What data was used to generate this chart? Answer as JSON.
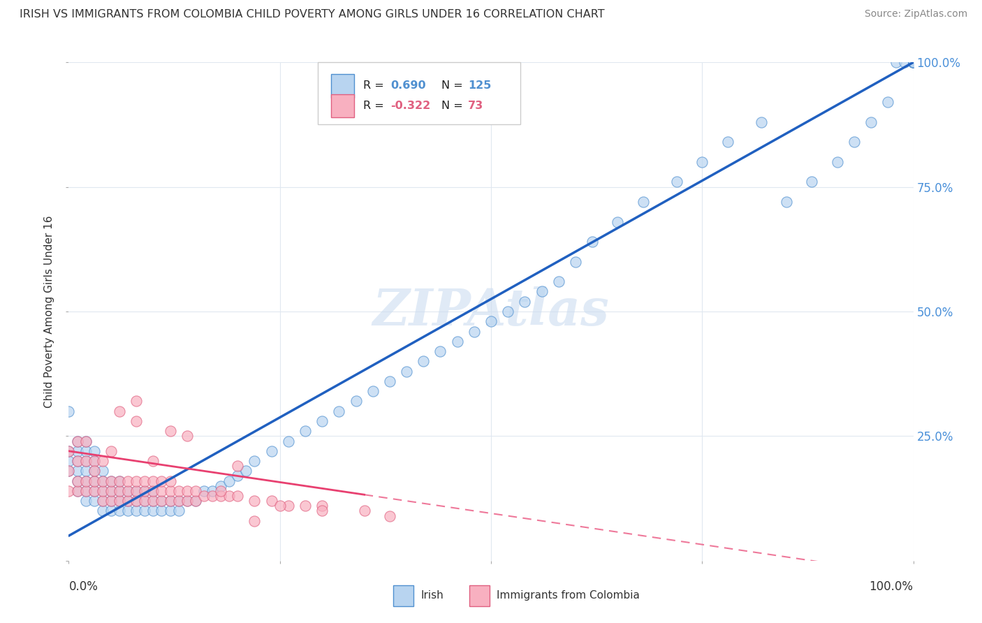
{
  "title": "IRISH VS IMMIGRANTS FROM COLOMBIA CHILD POVERTY AMONG GIRLS UNDER 16 CORRELATION CHART",
  "source": "Source: ZipAtlas.com",
  "ylabel": "Child Poverty Among Girls Under 16",
  "legend_irish_R": "0.690",
  "legend_irish_N": "125",
  "legend_colombia_R": "-0.322",
  "legend_colombia_N": "73",
  "irish_fill_color": "#b8d4f0",
  "ireland_edge_color": "#5090d0",
  "colombia_fill_color": "#f8b0c0",
  "colombia_edge_color": "#e06080",
  "irish_line_color": "#2060c0",
  "colombia_line_color": "#e84070",
  "watermark_color": "#ccddf0",
  "ytick_color": "#4a90d9",
  "grid_color": "#e0e8f0",
  "irish_scatter_x": [
    0.0,
    0.0,
    0.0,
    0.0,
    0.01,
    0.01,
    0.01,
    0.01,
    0.01,
    0.01,
    0.02,
    0.02,
    0.02,
    0.02,
    0.02,
    0.02,
    0.02,
    0.03,
    0.03,
    0.03,
    0.03,
    0.03,
    0.03,
    0.04,
    0.04,
    0.04,
    0.04,
    0.04,
    0.05,
    0.05,
    0.05,
    0.05,
    0.06,
    0.06,
    0.06,
    0.06,
    0.07,
    0.07,
    0.07,
    0.08,
    0.08,
    0.08,
    0.09,
    0.09,
    0.09,
    0.1,
    0.1,
    0.1,
    0.11,
    0.11,
    0.12,
    0.12,
    0.13,
    0.13,
    0.14,
    0.15,
    0.16,
    0.17,
    0.18,
    0.19,
    0.2,
    0.21,
    0.22,
    0.24,
    0.26,
    0.28,
    0.3,
    0.32,
    0.34,
    0.36,
    0.38,
    0.4,
    0.42,
    0.44,
    0.46,
    0.48,
    0.5,
    0.52,
    0.54,
    0.56,
    0.58,
    0.6,
    0.62,
    0.65,
    0.68,
    0.72,
    0.75,
    0.78,
    0.82,
    0.85,
    0.88,
    0.91,
    0.93,
    0.95,
    0.97,
    0.98,
    0.99,
    1.0,
    1.0,
    1.0,
    1.0,
    1.0,
    1.0,
    1.0,
    1.0,
    1.0,
    1.0,
    1.0,
    1.0,
    1.0,
    1.0,
    1.0,
    1.0,
    1.0,
    1.0,
    1.0,
    1.0,
    1.0,
    1.0,
    1.0,
    1.0,
    1.0,
    1.0,
    1.0,
    1.0
  ],
  "irish_scatter_y": [
    0.18,
    0.2,
    0.22,
    0.3,
    0.14,
    0.16,
    0.18,
    0.2,
    0.22,
    0.24,
    0.12,
    0.14,
    0.16,
    0.18,
    0.2,
    0.22,
    0.24,
    0.12,
    0.14,
    0.16,
    0.18,
    0.2,
    0.22,
    0.1,
    0.12,
    0.14,
    0.16,
    0.18,
    0.1,
    0.12,
    0.14,
    0.16,
    0.1,
    0.12,
    0.14,
    0.16,
    0.1,
    0.12,
    0.14,
    0.1,
    0.12,
    0.14,
    0.1,
    0.12,
    0.14,
    0.1,
    0.12,
    0.14,
    0.1,
    0.12,
    0.1,
    0.12,
    0.1,
    0.12,
    0.12,
    0.12,
    0.14,
    0.14,
    0.15,
    0.16,
    0.17,
    0.18,
    0.2,
    0.22,
    0.24,
    0.26,
    0.28,
    0.3,
    0.32,
    0.34,
    0.36,
    0.38,
    0.4,
    0.42,
    0.44,
    0.46,
    0.48,
    0.5,
    0.52,
    0.54,
    0.56,
    0.6,
    0.64,
    0.68,
    0.72,
    0.76,
    0.8,
    0.84,
    0.88,
    0.72,
    0.76,
    0.8,
    0.84,
    0.88,
    0.92,
    1.0,
    1.0,
    1.0,
    1.0,
    1.0,
    1.0,
    1.0,
    1.0,
    1.0,
    1.0,
    1.0,
    1.0,
    1.0,
    1.0,
    1.0,
    1.0,
    1.0,
    1.0,
    1.0,
    1.0,
    1.0,
    1.0,
    1.0,
    1.0,
    1.0,
    1.0,
    1.0,
    1.0,
    1.0,
    1.0
  ],
  "colombia_scatter_x": [
    0.0,
    0.0,
    0.0,
    0.01,
    0.01,
    0.01,
    0.01,
    0.02,
    0.02,
    0.02,
    0.02,
    0.03,
    0.03,
    0.03,
    0.04,
    0.04,
    0.04,
    0.04,
    0.05,
    0.05,
    0.05,
    0.06,
    0.06,
    0.06,
    0.07,
    0.07,
    0.07,
    0.08,
    0.08,
    0.08,
    0.09,
    0.09,
    0.09,
    0.1,
    0.1,
    0.1,
    0.11,
    0.11,
    0.11,
    0.12,
    0.12,
    0.12,
    0.13,
    0.13,
    0.14,
    0.14,
    0.15,
    0.15,
    0.16,
    0.17,
    0.18,
    0.19,
    0.2,
    0.22,
    0.24,
    0.26,
    0.28,
    0.3,
    0.35,
    0.38,
    0.12,
    0.08,
    0.14,
    0.05,
    0.1,
    0.06,
    0.08,
    0.03,
    0.2,
    0.25,
    0.3,
    0.18,
    0.22
  ],
  "colombia_scatter_y": [
    0.14,
    0.18,
    0.22,
    0.14,
    0.16,
    0.2,
    0.24,
    0.14,
    0.16,
    0.2,
    0.24,
    0.14,
    0.16,
    0.2,
    0.12,
    0.14,
    0.16,
    0.2,
    0.12,
    0.14,
    0.16,
    0.12,
    0.14,
    0.16,
    0.12,
    0.14,
    0.16,
    0.12,
    0.14,
    0.16,
    0.12,
    0.14,
    0.16,
    0.12,
    0.14,
    0.16,
    0.12,
    0.14,
    0.16,
    0.12,
    0.14,
    0.16,
    0.12,
    0.14,
    0.12,
    0.14,
    0.12,
    0.14,
    0.13,
    0.13,
    0.13,
    0.13,
    0.13,
    0.12,
    0.12,
    0.11,
    0.11,
    0.11,
    0.1,
    0.09,
    0.26,
    0.28,
    0.25,
    0.22,
    0.2,
    0.3,
    0.32,
    0.18,
    0.19,
    0.11,
    0.1,
    0.14,
    0.08
  ]
}
